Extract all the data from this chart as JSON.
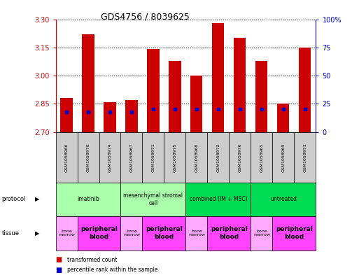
{
  "title": "GDS4756 / 8039625",
  "samples": [
    "GSM1058966",
    "GSM1058970",
    "GSM1058974",
    "GSM1058967",
    "GSM1058971",
    "GSM1058975",
    "GSM1058968",
    "GSM1058972",
    "GSM1058976",
    "GSM1058965",
    "GSM1058969",
    "GSM1058973"
  ],
  "transformed_counts": [
    2.88,
    3.22,
    2.86,
    2.87,
    3.14,
    3.08,
    3.0,
    3.28,
    3.2,
    3.08,
    2.85,
    3.15
  ],
  "percentile_ranks": [
    18,
    18,
    18,
    18,
    20,
    20,
    20,
    20,
    20,
    20,
    20,
    20
  ],
  "bar_base": 2.7,
  "ylim": [
    2.7,
    3.3
  ],
  "y2lim": [
    0,
    100
  ],
  "yticks": [
    2.7,
    2.85,
    3.0,
    3.15,
    3.3
  ],
  "y2ticks": [
    0,
    25,
    50,
    75,
    100
  ],
  "protocols": [
    {
      "label": "imatinib",
      "start": 0,
      "end": 3,
      "color": "#aaffaa"
    },
    {
      "label": "mesenchymal stromal\ncell",
      "start": 3,
      "end": 6,
      "color": "#aaffaa"
    },
    {
      "label": "combined (IM + MSC)",
      "start": 6,
      "end": 9,
      "color": "#00dd55"
    },
    {
      "label": "untreated",
      "start": 9,
      "end": 12,
      "color": "#00dd55"
    }
  ],
  "tissues": [
    {
      "label": "bone\nmarrow",
      "start": 0,
      "end": 1,
      "color": "#ffaaff"
    },
    {
      "label": "peripheral\nblood",
      "start": 1,
      "end": 3,
      "color": "#ff44ff"
    },
    {
      "label": "bone\nmarrow",
      "start": 3,
      "end": 4,
      "color": "#ffaaff"
    },
    {
      "label": "peripheral\nblood",
      "start": 4,
      "end": 6,
      "color": "#ff44ff"
    },
    {
      "label": "bone\nmarrow",
      "start": 6,
      "end": 7,
      "color": "#ffaaff"
    },
    {
      "label": "peripheral\nblood",
      "start": 7,
      "end": 9,
      "color": "#ff44ff"
    },
    {
      "label": "bone\nmarrow",
      "start": 9,
      "end": 10,
      "color": "#ffaaff"
    },
    {
      "label": "peripheral\nblood",
      "start": 10,
      "end": 12,
      "color": "#ff44ff"
    }
  ],
  "bar_color": "#cc0000",
  "dot_color": "#0000cc",
  "background_color": "#ffffff",
  "left_axis_color": "#cc0000",
  "right_axis_color": "#0000cc",
  "sample_box_color": "#cccccc"
}
